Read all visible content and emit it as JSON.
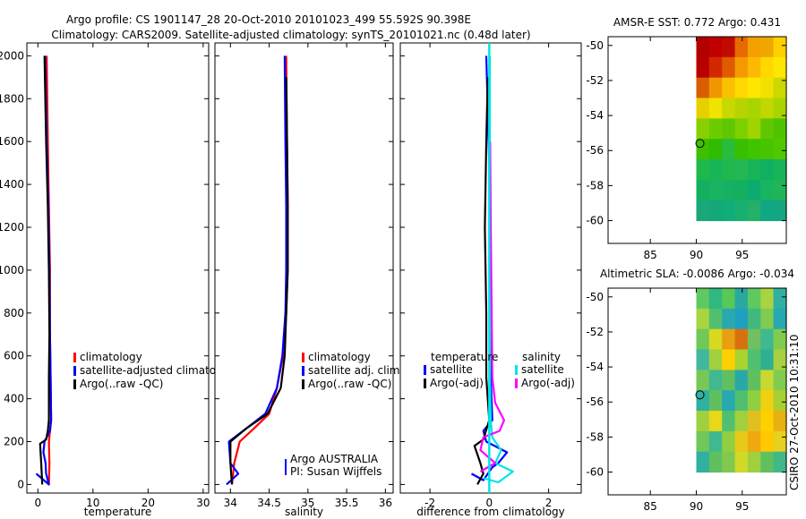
{
  "title_line1": "Argo profile: CS 1901147_28 20-Oct-2010 20101023_499 55.592S 90.398E",
  "title_line2": "Climatology: CARS2009. Satellite-adjusted climatology: synTS_20101021.nc (0.48d later)",
  "side_stamp": "CSIRO 27-Oct-2010 10:31:10",
  "colors": {
    "climatology": "#ff0000",
    "satellite": "#0000ff",
    "argo": "#000000",
    "sat_sal": "#00e5e5",
    "argo_sal": "#ff00ff"
  },
  "chart_data": [
    {
      "type": "line",
      "id": "temperature",
      "xlabel": "temperature",
      "xlim": [
        -2,
        31
      ],
      "ylim": [
        2060,
        -40
      ],
      "xticks": [
        0,
        10,
        20,
        30
      ],
      "yticks": [
        0,
        200,
        400,
        600,
        800,
        1000,
        1200,
        1400,
        1600,
        1800,
        2000
      ],
      "legend": [
        "climatology",
        "satellite-adjusted climatology",
        "Argo(..raw -QC)"
      ],
      "series": [
        {
          "name": "climatology",
          "color": "#ff0000",
          "points": [
            [
              2.0,
              0
            ],
            [
              2.1,
              100
            ],
            [
              2.0,
              200
            ],
            [
              2.4,
              300
            ],
            [
              2.3,
              500
            ],
            [
              2.2,
              700
            ],
            [
              2.2,
              1000
            ],
            [
              2.0,
              1300
            ],
            [
              1.8,
              1600
            ],
            [
              1.6,
              2000
            ]
          ]
        },
        {
          "name": "satellite-adjusted climatology",
          "color": "#0000ff",
          "points": [
            [
              -0.3,
              50
            ],
            [
              2.0,
              0
            ],
            [
              1.5,
              50
            ],
            [
              1.4,
              100
            ],
            [
              1.0,
              150
            ],
            [
              1.2,
              200
            ],
            [
              2.2,
              250
            ],
            [
              2.4,
              300
            ],
            [
              2.3,
              500
            ],
            [
              2.2,
              700
            ],
            [
              2.1,
              1000
            ],
            [
              1.9,
              1300
            ],
            [
              1.6,
              1600
            ],
            [
              1.3,
              2000
            ]
          ]
        },
        {
          "name": "Argo(..raw -QC)",
          "color": "#000000",
          "points": [
            [
              0.8,
              0
            ],
            [
              0.6,
              100
            ],
            [
              0.4,
              190
            ],
            [
              1.5,
              210
            ],
            [
              1.8,
              250
            ],
            [
              2.0,
              300
            ],
            [
              2.0,
              500
            ],
            [
              2.1,
              700
            ],
            [
              2.0,
              1000
            ],
            [
              1.8,
              1300
            ],
            [
              1.5,
              1600
            ],
            [
              1.2,
              2000
            ]
          ]
        }
      ]
    },
    {
      "type": "line",
      "id": "salinity",
      "xlabel": "salinity",
      "xlim": [
        33.8,
        36.1
      ],
      "ylim": [
        2060,
        -40
      ],
      "xticks": [
        34,
        34.5,
        35,
        35.5,
        36
      ],
      "xticklabels": [
        "34",
        "34.5",
        "35",
        "35.5",
        "36"
      ],
      "legend": [
        "climatology",
        "satellite adj. clim.",
        "Argo(..raw -QC)"
      ],
      "annotation": [
        "Argo AUSTRALIA",
        "PI: Susan Wijffels"
      ],
      "series": [
        {
          "name": "climatology",
          "color": "#ff0000",
          "points": [
            [
              34.02,
              0
            ],
            [
              34.05,
              100
            ],
            [
              34.12,
              200
            ],
            [
              34.3,
              260
            ],
            [
              34.5,
              330
            ],
            [
              34.6,
              450
            ],
            [
              34.68,
              600
            ],
            [
              34.72,
              800
            ],
            [
              34.74,
              1000
            ],
            [
              34.74,
              1300
            ],
            [
              34.73,
              1600
            ],
            [
              34.72,
              2000
            ]
          ]
        },
        {
          "name": "satellite adj. clim.",
          "color": "#0000ff",
          "points": [
            [
              33.95,
              0
            ],
            [
              34.1,
              50
            ],
            [
              34.0,
              100
            ],
            [
              33.98,
              200
            ],
            [
              34.2,
              260
            ],
            [
              34.45,
              330
            ],
            [
              34.6,
              450
            ],
            [
              34.67,
              600
            ],
            [
              34.71,
              800
            ],
            [
              34.72,
              1000
            ],
            [
              34.72,
              1300
            ],
            [
              34.71,
              1600
            ],
            [
              34.7,
              2000
            ]
          ]
        },
        {
          "name": "Argo(..raw -QC)",
          "color": "#000000",
          "points": [
            [
              34.02,
              0
            ],
            [
              34.0,
              100
            ],
            [
              34.0,
              200
            ],
            [
              34.2,
              260
            ],
            [
              34.48,
              330
            ],
            [
              34.65,
              450
            ],
            [
              34.7,
              600
            ],
            [
              34.72,
              800
            ],
            [
              34.74,
              1000
            ],
            [
              34.74,
              1300
            ],
            [
              34.73,
              1600
            ],
            [
              34.72,
              1900
            ]
          ]
        }
      ]
    },
    {
      "type": "line",
      "id": "difference",
      "xlabel": "difference from climatology",
      "xlim": [
        -3,
        3.1
      ],
      "ylim": [
        2060,
        -40
      ],
      "xticks": [
        -2,
        0,
        2
      ],
      "legend_title_temperature": "temperature",
      "legend_title_salinity": "salinity",
      "legend": [
        "satellite",
        "Argo(-adj)",
        "satellite",
        "Argo(-adj)"
      ],
      "series": [
        {
          "name": "temperature satellite",
          "color": "#0000ff",
          "points": [
            [
              -0.6,
              50
            ],
            [
              -0.2,
              20
            ],
            [
              0.1,
              80
            ],
            [
              0.3,
              100
            ],
            [
              0.6,
              150
            ],
            [
              -0.1,
              200
            ],
            [
              -0.2,
              250
            ],
            [
              0.1,
              300
            ],
            [
              0.05,
              500
            ],
            [
              0.02,
              1000
            ],
            [
              0.0,
              1500
            ],
            [
              -0.1,
              2000
            ]
          ]
        },
        {
          "name": "temperature Argo(-adj)",
          "color": "#000000",
          "points": [
            [
              -0.4,
              0
            ],
            [
              -0.2,
              50
            ],
            [
              -0.3,
              100
            ],
            [
              -0.5,
              180
            ],
            [
              -0.2,
              210
            ],
            [
              0.0,
              300
            ],
            [
              -0.1,
              500
            ],
            [
              -0.1,
              800
            ],
            [
              -0.15,
              1200
            ],
            [
              -0.1,
              1600
            ],
            [
              -0.05,
              1900
            ]
          ]
        },
        {
          "name": "salinity satellite",
          "color": "#00e5e5",
          "points": [
            [
              -0.2,
              30
            ],
            [
              0.3,
              10
            ],
            [
              0.8,
              60
            ],
            [
              0.2,
              100
            ],
            [
              0.4,
              160
            ],
            [
              0.1,
              220
            ],
            [
              0.05,
              300
            ],
            [
              0.02,
              500
            ],
            [
              0.02,
              1000
            ],
            [
              0.02,
              1500
            ],
            [
              0.02,
              2000
            ]
          ]
        },
        {
          "name": "salinity Argo(-adj)",
          "color": "#ff00ff",
          "points": [
            [
              -0.3,
              60
            ],
            [
              0.2,
              100
            ],
            [
              -0.3,
              160
            ],
            [
              -0.2,
              220
            ],
            [
              0.35,
              250
            ],
            [
              0.5,
              300
            ],
            [
              0.2,
              380
            ],
            [
              0.1,
              500
            ],
            [
              0.08,
              800
            ],
            [
              0.05,
              1200
            ],
            [
              0.03,
              1600
            ]
          ]
        }
      ]
    },
    {
      "type": "heatmap",
      "id": "sst_map",
      "title": "AMSR-E SST: 0.772 Argo: 0.431",
      "xlim": [
        80.4,
        99.8
      ],
      "ylim": [
        -61.3,
        -49.5
      ],
      "xticks": [
        85,
        90,
        95
      ],
      "yticks": [
        -50,
        -52,
        -54,
        -56,
        -58,
        -60
      ],
      "data_extent": {
        "lon": [
          90,
          99.8
        ],
        "lat": [
          -60,
          -49.5
        ]
      },
      "argo_position": {
        "lon": 90.398,
        "lat": -55.592
      },
      "cell_colors": [
        [
          "#b10000",
          "#c00000",
          "#c00a00",
          "#e86a00",
          "#f4a000",
          "#f0a800",
          "#ffd000"
        ],
        [
          "#b80000",
          "#d22800",
          "#e05a00",
          "#f49a00",
          "#ffb800",
          "#ffd800",
          "#ffe600"
        ],
        [
          "#d85e00",
          "#f09600",
          "#f9c000",
          "#ffd800",
          "#ffe600",
          "#f2e000",
          "#ccd800"
        ],
        [
          "#e6d000",
          "#f2e200",
          "#c8d800",
          "#b8d400",
          "#a8d400",
          "#c0d800",
          "#aad400"
        ],
        [
          "#88d000",
          "#6ccc00",
          "#60c800",
          "#7cd000",
          "#a0d400",
          "#60c800",
          "#4ec400"
        ],
        [
          "#3ec000",
          "#30bc00",
          "#2abc3c",
          "#38c000",
          "#40c400",
          "#48c400",
          "#50c800"
        ],
        [
          "#20b84a",
          "#18b458",
          "#20b84c",
          "#24b854",
          "#18b458",
          "#10b060",
          "#18b45a"
        ],
        [
          "#14b060",
          "#18b460",
          "#18b064",
          "#14b060",
          "#0cac70",
          "#18b460",
          "#22b458"
        ],
        [
          "#1aa87a",
          "#14a878",
          "#10ac7a",
          "#18b070",
          "#24b068",
          "#10a884",
          "#14a680"
        ]
      ]
    },
    {
      "type": "heatmap",
      "id": "sla_map",
      "title": "Altimetric SLA: -0.0086 Argo: -0.034",
      "xlim": [
        80.4,
        99.8
      ],
      "ylim": [
        -61.3,
        -49.5
      ],
      "xticks": [
        85,
        90,
        95
      ],
      "yticks": [
        -50,
        -52,
        -54,
        -56,
        -58,
        -60
      ],
      "data_extent": {
        "lon": [
          90,
          99.8
        ],
        "lat": [
          -60,
          -49.5
        ]
      },
      "argo_position": {
        "lon": 90.398,
        "lat": -55.592
      },
      "cell_colors": [
        [
          "#60c860",
          "#30b880",
          "#58c858",
          "#2aa8a0",
          "#60c860",
          "#a8d440",
          "#30b0a0"
        ],
        [
          "#a8d440",
          "#50c070",
          "#2aa8b0",
          "#20a0c0",
          "#40b880",
          "#80cc50",
          "#28a8b0"
        ],
        [
          "#70c858",
          "#d8d820",
          "#e8a010",
          "#d87010",
          "#70c060",
          "#40b890",
          "#80cc50"
        ],
        [
          "#40b8a0",
          "#a0d040",
          "#ffd000",
          "#a8d430",
          "#50c070",
          "#30b090",
          "#a8d040"
        ],
        [
          "#78c858",
          "#40b890",
          "#60c060",
          "#2aa8a8",
          "#60c060",
          "#c8d830",
          "#80cc50"
        ],
        [
          "#30b0a0",
          "#60c060",
          "#28a8b0",
          "#50c070",
          "#90d040",
          "#f0d010",
          "#a8d030"
        ],
        [
          "#a0d040",
          "#e8d818",
          "#50c070",
          "#a0d040",
          "#e0c020",
          "#ffd000",
          "#e8b010"
        ],
        [
          "#70c858",
          "#40b890",
          "#90d040",
          "#e8c818",
          "#f0a810",
          "#ffc800",
          "#e8d020"
        ],
        [
          "#30b0a0",
          "#60c060",
          "#80c850",
          "#d0d828",
          "#a0d040",
          "#60c060",
          "#40b888"
        ]
      ]
    }
  ]
}
